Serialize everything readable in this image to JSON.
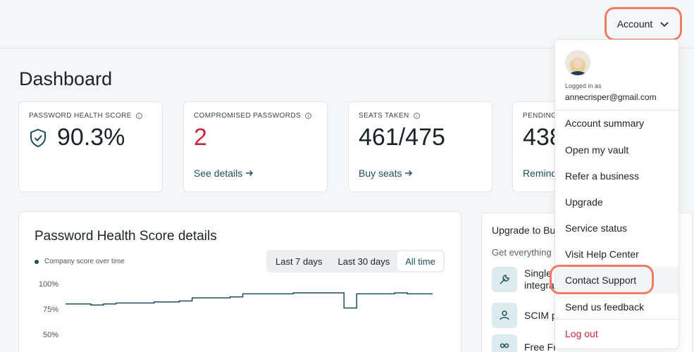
{
  "header": {
    "account_label": "Account"
  },
  "page": {
    "title": "Dashboard"
  },
  "cards": [
    {
      "label": "PASSWORD HEALTH SCORE",
      "value": "90.3%",
      "link": ""
    },
    {
      "label": "COMPROMISED PASSWORDS",
      "value": "2",
      "link": "See details"
    },
    {
      "label": "SEATS TAKEN",
      "value": "461/475",
      "link": "Buy seats"
    },
    {
      "label": "PENDING",
      "value": "438",
      "link": "Remind"
    }
  ],
  "health_panel": {
    "title": "Password Health Score details",
    "legend": "Company score over time",
    "ranges": [
      "Last 7 days",
      "Last 30 days",
      "All time"
    ],
    "active_range": "All time",
    "y_ticks": [
      "100%",
      "75%",
      "50%"
    ]
  },
  "promo": {
    "title": "Upgrade to Bu",
    "subtitle": "Get everything",
    "items": [
      {
        "line1": "Single",
        "line2": "integra"
      },
      {
        "line1": "SCIM p",
        "line2": ""
      },
      {
        "line1": "Free Fr",
        "line2": ""
      }
    ]
  },
  "menu": {
    "logged_in_label": "Logged in as",
    "email": "annecrisper@gmail.com",
    "items": [
      "Account summary",
      "Open my vault",
      "Refer a business",
      "Upgrade",
      "Service status",
      "Visit Help Center",
      "Contact Support",
      "Send us feedback"
    ],
    "logout": "Log out"
  },
  "colors": {
    "accent": "#1d4f5c",
    "danger": "#c8293a",
    "highlight": "#f07c63"
  },
  "chart_data": {
    "type": "line",
    "title": "Password Health Score details",
    "series": [
      {
        "name": "Company score over time",
        "values": [
          80,
          80,
          79,
          80,
          81,
          81,
          81,
          82,
          82,
          83,
          86,
          86,
          86,
          87,
          90,
          90,
          90,
          90,
          91,
          91,
          91,
          91,
          76,
          90,
          90,
          90,
          91,
          90,
          90,
          90
        ]
      }
    ],
    "y_ticks": [
      "100%",
      "75%",
      "50%"
    ],
    "ylim": [
      50,
      100
    ],
    "grid": false
  }
}
